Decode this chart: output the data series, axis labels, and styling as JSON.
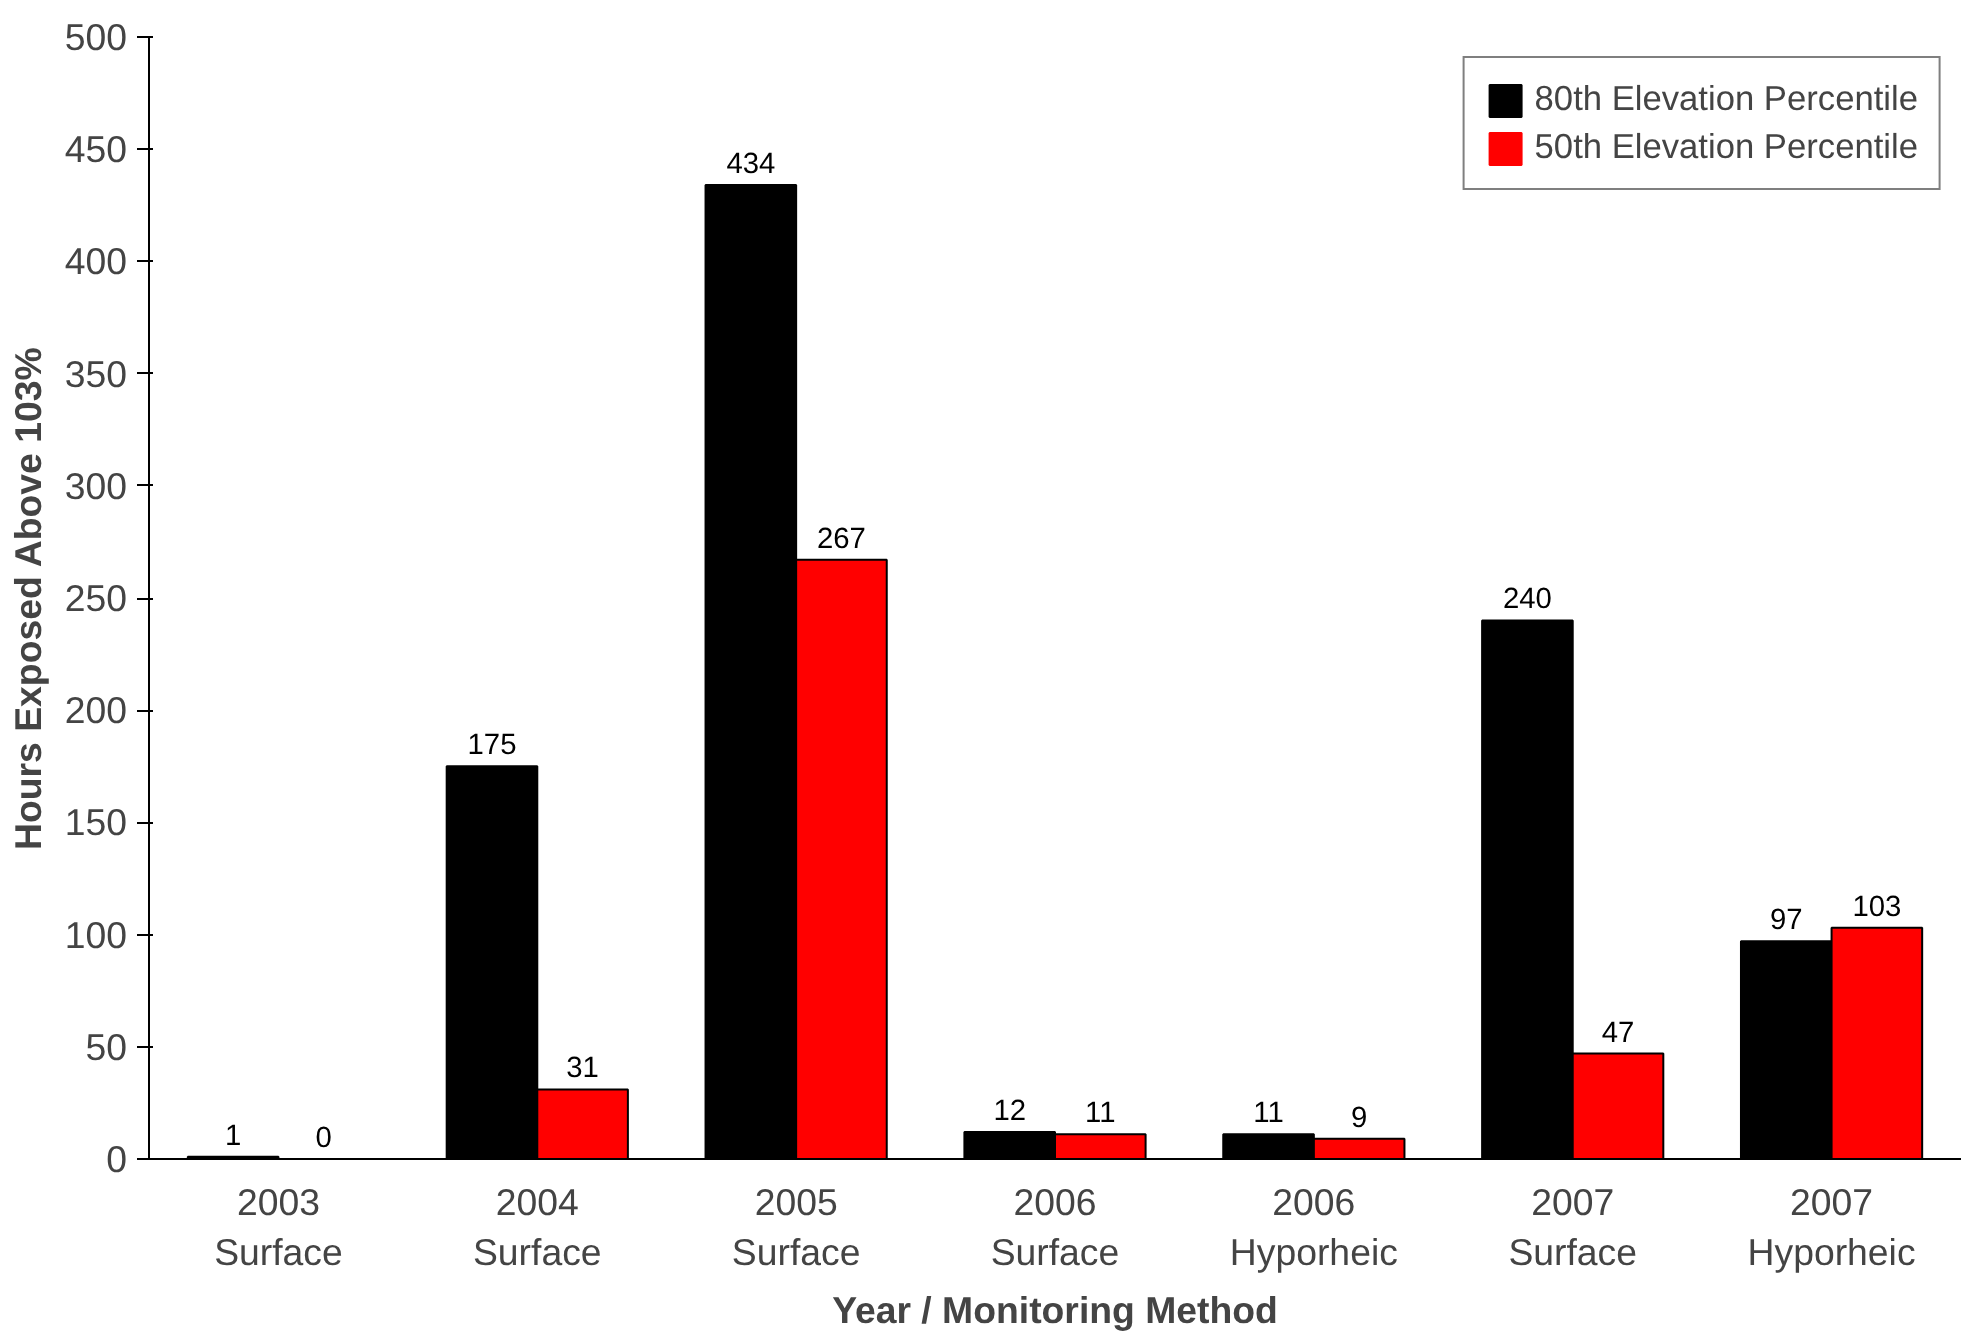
{
  "chart_data": {
    "type": "bar",
    "xlabel": "Year / Monitoring Method",
    "ylabel": "Hours Exposed Above 103%",
    "categories": [
      "2003\nSurface",
      "2004\nSurface",
      "2005\nSurface",
      "2006\nSurface",
      "2006\nHyporheic",
      "2007\nSurface",
      "2007\nHyporheic"
    ],
    "series": [
      {
        "name": "80th Elevation Percentile",
        "color": "#000000",
        "values": [
          1,
          175,
          434,
          12,
          11,
          240,
          97
        ]
      },
      {
        "name": "50th Elevation Percentile",
        "color": "#ff0000",
        "values": [
          0,
          31,
          267,
          11,
          9,
          47,
          103
        ]
      }
    ],
    "ylim": [
      0,
      500
    ],
    "yticks": [
      0,
      50,
      100,
      150,
      200,
      250,
      300,
      350,
      400,
      450,
      500
    ],
    "data_labels": true,
    "grid": false,
    "legend": "top right"
  }
}
